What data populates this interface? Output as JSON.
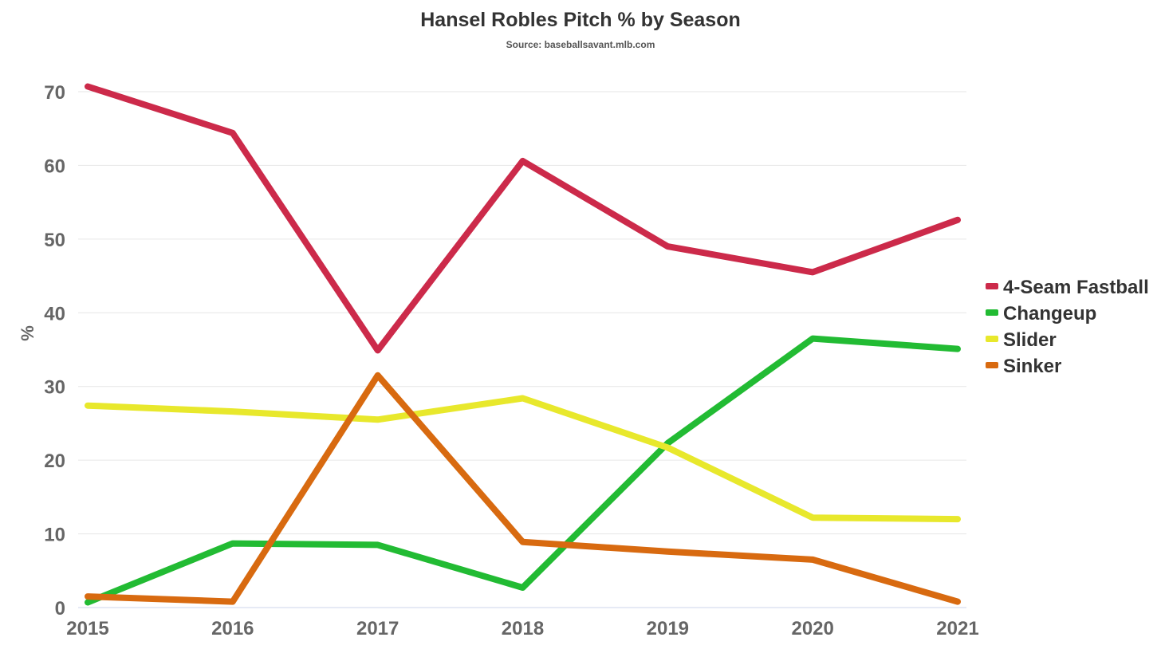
{
  "chart_data": {
    "type": "line",
    "title": "Hansel Robles Pitch % by Season",
    "subtitle": "Source: baseballsavant.mlb.com",
    "xlabel": "",
    "ylabel": "%",
    "categories": [
      "2015",
      "2016",
      "2017",
      "2018",
      "2019",
      "2020",
      "2021"
    ],
    "y_ticks": [
      "0",
      "10",
      "20",
      "30",
      "40",
      "50",
      "60",
      "70"
    ],
    "ylim": [
      0,
      70
    ],
    "grid": true,
    "legend_position": "right",
    "series": [
      {
        "name": "4-Seam Fastball",
        "color": "#cc2a4a",
        "values": [
          70.7,
          64.4,
          34.9,
          60.6,
          49.0,
          45.5,
          52.6
        ]
      },
      {
        "name": "Changeup",
        "color": "#22bb33",
        "values": [
          0.7,
          8.7,
          8.5,
          2.7,
          22.3,
          36.5,
          35.1
        ]
      },
      {
        "name": "Slider",
        "color": "#e8e82c",
        "values": [
          27.4,
          26.6,
          25.5,
          28.4,
          21.7,
          12.2,
          12.0
        ]
      },
      {
        "name": "Sinker",
        "color": "#d86a10",
        "values": [
          1.5,
          0.8,
          31.5,
          8.9,
          7.6,
          6.5,
          0.8
        ]
      }
    ]
  }
}
